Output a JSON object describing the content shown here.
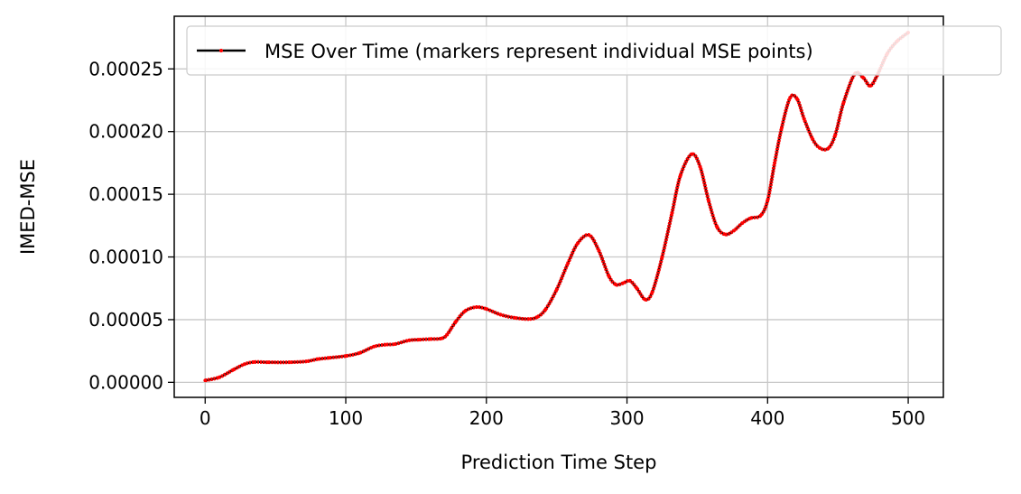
{
  "chart_data": {
    "type": "line",
    "xlabel": "Prediction Time Step",
    "ylabel": "IMED-MSE",
    "xlim": [
      -22,
      525
    ],
    "ylim": [
      -1.2e-05,
      0.000292
    ],
    "xticks": [
      0,
      100,
      200,
      300,
      400,
      500
    ],
    "xtick_labels": [
      "0",
      "100",
      "200",
      "300",
      "400",
      "500"
    ],
    "yticks": [
      0,
      5e-05,
      0.0001,
      0.00015,
      0.0002,
      0.00025
    ],
    "ytick_labels": [
      "0.00000",
      "0.00005",
      "0.00010",
      "0.00015",
      "0.00020",
      "0.00025"
    ],
    "grid": true,
    "legend": {
      "placement": "top-right",
      "entries": [
        "MSE Over Time (markers represent individual MSE points)"
      ]
    },
    "colors": {
      "line": "#000000",
      "markers": "#ff0000"
    },
    "series": [
      {
        "name": "MSE Over Time (markers represent individual MSE points)",
        "x": [
          0,
          10,
          20,
          28,
          35,
          45,
          60,
          72,
          80,
          88,
          100,
          110,
          120,
          128,
          135,
          145,
          152,
          160,
          168,
          172,
          178,
          185,
          193,
          200,
          210,
          220,
          230,
          236,
          242,
          250,
          258,
          265,
          273,
          280,
          287,
          292,
          297,
          302,
          307,
          313,
          318,
          325,
          332,
          338,
          346,
          352,
          358,
          364,
          370,
          376,
          382,
          388,
          395,
          400,
          405,
          410,
          416,
          421,
          426,
          432,
          437,
          443,
          448,
          454,
          462,
          468,
          473,
          478,
          485,
          492,
          500
        ],
        "y": [
          1.5e-06,
          4e-06,
          1e-05,
          1.45e-05,
          1.62e-05,
          1.6e-05,
          1.6e-05,
          1.67e-05,
          1.85e-05,
          1.95e-05,
          2.1e-05,
          2.35e-05,
          2.85e-05,
          3e-05,
          3.05e-05,
          3.35e-05,
          3.4e-05,
          3.45e-05,
          3.5e-05,
          3.8e-05,
          4.8e-05,
          5.7e-05,
          6e-05,
          5.85e-05,
          5.4e-05,
          5.15e-05,
          5.05e-05,
          5.2e-05,
          5.8e-05,
          7.4e-05,
          9.5e-05,
          0.000111,
          0.0001175,
          0.000105,
          8.5e-05,
          7.8e-05,
          7.9e-05,
          8.1e-05,
          7.5e-05,
          6.6e-05,
          7.2e-05,
          0.0001,
          0.000135,
          0.000165,
          0.000182,
          0.000172,
          0.000145,
          0.000124,
          0.000118,
          0.000121,
          0.000127,
          0.000131,
          0.000133,
          0.000145,
          0.000175,
          0.000203,
          0.000227,
          0.000226,
          0.00021,
          0.000194,
          0.000187,
          0.0001865,
          0.000197,
          0.000223,
          0.000246,
          0.000243,
          0.0002365,
          0.000245,
          0.000262,
          0.000272,
          0.000279
        ]
      }
    ]
  }
}
